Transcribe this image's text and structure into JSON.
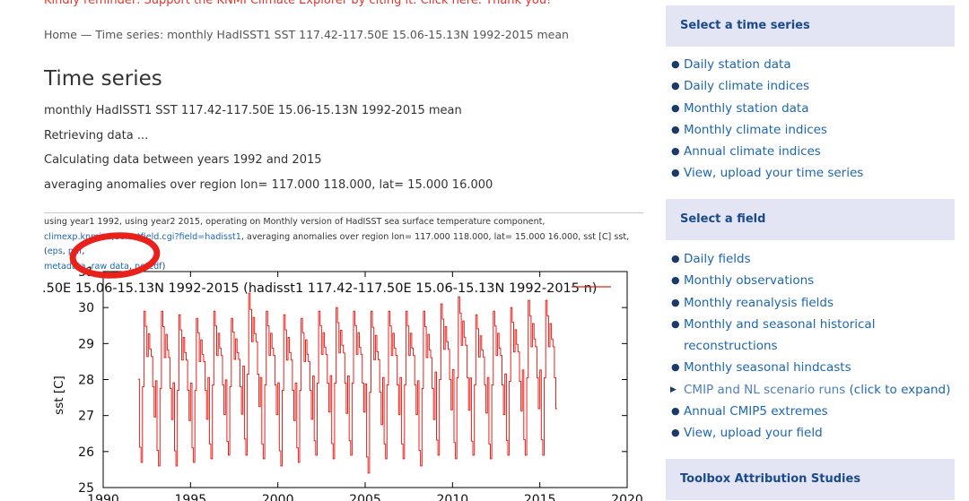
{
  "reminder": "Kindly reminder: Support the KNMI Climate Explorer by citing it. Click here. Thank you!",
  "breadcrumb": "Home — Time series: monthly HadISST1 SST 117.42-117.50E 15.06-15.13N 1992-2015 mean",
  "page_title": "Time series",
  "info_lines": [
    "monthly HadISST1 SST 117.42-117.50E 15.06-15.13N 1992-2015 mean",
    "Retrieving data ...",
    "Calculating data between years 1992 and 2015",
    "averaging anomalies over region lon= 117.000 118.000, lat= 15.000 16.000"
  ],
  "caption": {
    "line1": "using year1 1992, using year2 2015, operating on Monthly version of HadISST sea surface temperature component,",
    "url": "climexp.knmi.nl/selectfield.cgi?field=hadisst1",
    "line2": ", averaging anomalies over region lon= 117.000 118.000, lat= 15.000 16.000, sst [C] sst, (",
    "links": [
      "eps",
      "pdf",
      "metadata",
      "raw data",
      "netcdf"
    ],
    "sep": ", ",
    "close": ")"
  },
  "annotation_color": "#e8211b",
  "chart_data": {
    "type": "line",
    "title": ".50E 15.06-15.13N 1992-2015 (hadisst1 117.42-117.50E 15.06-15.13N 1992-2015 n)",
    "ylabel": "sst [C]",
    "xlabel": "",
    "xlim": [
      1990,
      2020
    ],
    "ylim": [
      25,
      31
    ],
    "xticks": [
      "1990",
      "1995",
      "2000",
      "2005",
      "2010",
      "2015",
      "2020"
    ],
    "yticks": [
      "25",
      "26",
      "27",
      "28",
      "29",
      "30",
      "31"
    ],
    "line_color": "#e8211b",
    "series": [
      {
        "name": "",
        "years": [
          1992,
          1993,
          1994,
          1995,
          1996,
          1997,
          1998,
          1999,
          2000,
          2001,
          2002,
          2003,
          2004,
          2005,
          2006,
          2007,
          2008,
          2009,
          2010,
          2011,
          2012,
          2013,
          2014,
          2015
        ],
        "annual_min": [
          25.7,
          25.6,
          25.6,
          25.7,
          25.8,
          25.9,
          25.9,
          25.8,
          25.6,
          25.7,
          25.9,
          25.8,
          25.9,
          25.4,
          25.8,
          25.8,
          25.6,
          25.9,
          25.8,
          25.9,
          25.8,
          25.9,
          25.9,
          25.9
        ],
        "annual_max": [
          29.9,
          29.9,
          29.8,
          29.7,
          29.9,
          29.7,
          30.4,
          29.9,
          29.8,
          29.7,
          29.9,
          30.0,
          29.9,
          29.9,
          29.9,
          29.9,
          29.9,
          30.1,
          30.3,
          29.8,
          29.9,
          30.0,
          30.2,
          30.2
        ]
      }
    ]
  },
  "sidebar": {
    "sections": [
      {
        "title": "Select a time series",
        "items": [
          "Daily station data",
          "Daily climate indices",
          "Monthly station data",
          "Monthly climate indices",
          "Annual climate indices",
          "View, upload your time series"
        ]
      },
      {
        "title": "Select a field",
        "items": [
          "Daily fields",
          "Monthly observations",
          "Monthly reanalysis fields",
          "Monthly and seasonal historical reconstructions",
          "Monthly seasonal hindcasts",
          "CMIP and NL scenario runs",
          "Annual CMIP5 extremes",
          "View, upload your field"
        ],
        "expand_hint": "(click to expand)"
      },
      {
        "title": "Toolbox Attribution Studies",
        "items": []
      }
    ]
  }
}
